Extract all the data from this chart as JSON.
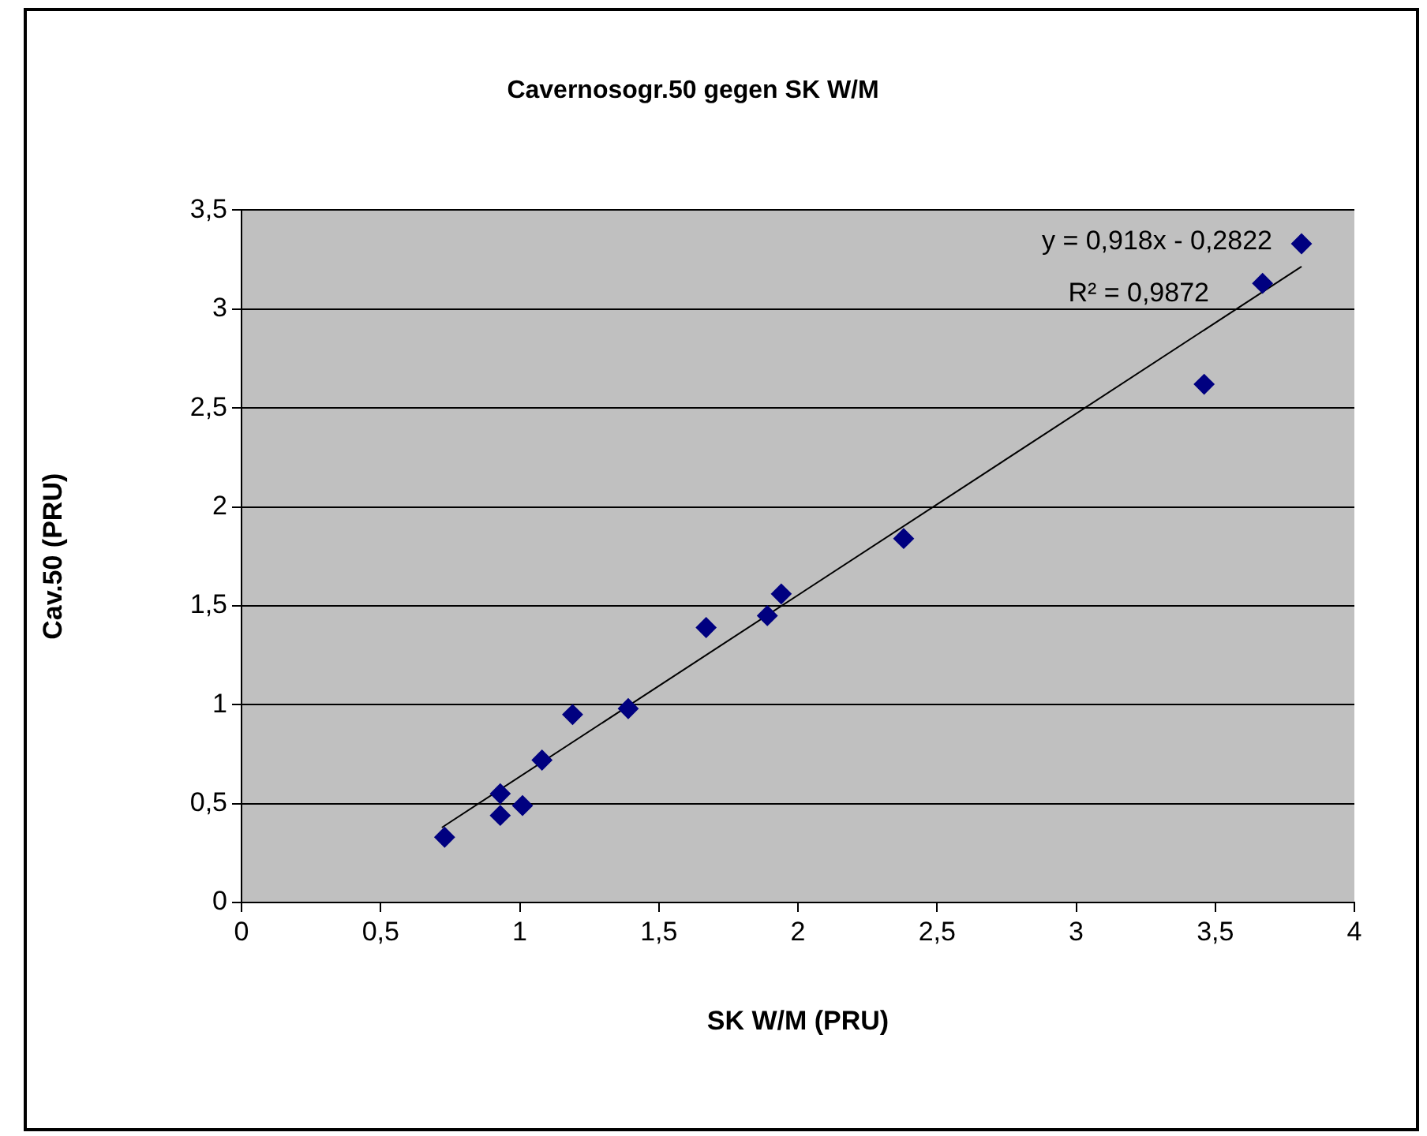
{
  "chart_data": {
    "type": "scatter",
    "title": "Cavernosogr.50 gegen SK W/M",
    "xlabel": "SK W/M (PRU)",
    "ylabel": "Cav.50 (PRU)",
    "x": [
      0.73,
      0.93,
      0.93,
      1.01,
      1.08,
      1.19,
      1.39,
      1.67,
      1.89,
      1.94,
      2.38,
      3.46,
      3.67,
      3.81
    ],
    "series": [
      {
        "color": "#000080",
        "marker": "diamond",
        "values": [
          0.33,
          0.55,
          0.44,
          0.49,
          0.72,
          0.95,
          0.98,
          1.39,
          1.45,
          1.56,
          1.84,
          2.62,
          3.13,
          3.33
        ]
      },
      {
        "type": "line",
        "color": "#000000",
        "marker": "none",
        "x": [
          0.72,
          3.81
        ],
        "values": [
          0.379,
          3.215
        ]
      }
    ],
    "xlim": [
      0,
      4
    ],
    "xticks": [
      0,
      {
        "value": 0.5,
        "label": "0,5"
      },
      1,
      {
        "value": 1.5,
        "label": "1,5"
      },
      2,
      {
        "value": 2.5,
        "label": "2,5"
      },
      3,
      {
        "value": 3.5,
        "label": "3,5"
      },
      4
    ],
    "ylim": [
      0,
      3.5
    ],
    "yticks": [
      0,
      {
        "value": 0.5,
        "label": "0,5"
      },
      1,
      {
        "value": 1.5,
        "label": "1,5"
      },
      2,
      {
        "value": 2.5,
        "label": "2,5"
      },
      3,
      {
        "value": 3.5,
        "label": "3,5"
      }
    ],
    "grid": "y",
    "legend": false,
    "annotations": [
      "y = 0,918x - 0,2822",
      "R² = 0,9872"
    ]
  }
}
